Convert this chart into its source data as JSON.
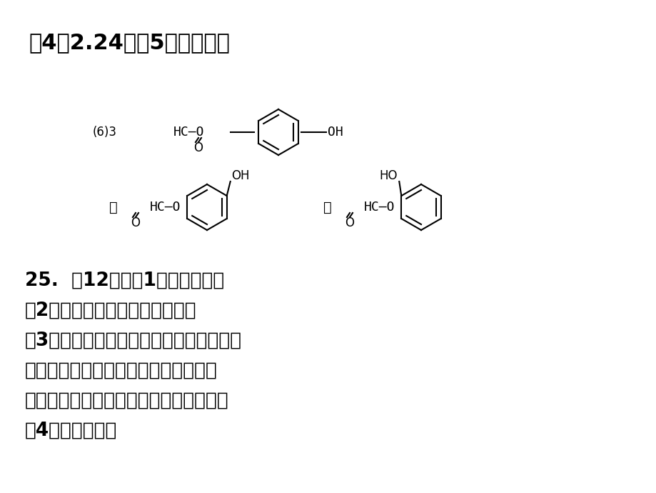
{
  "bg_color": "#ffffff",
  "title_line": "（4）2.24灌（5）消去反应",
  "text_lines": [
    "25.  （12分）（1）醛基、羟基",
    "（2）甲、乙、丙互为同分异构体",
    "（3）与三氯化铁溶液作用显紫色的是甲；",
    "与碳酸钠溶液作用有气泡生成的是乙；",
    "与银氨溶液水浴加热有银镜产生的是丙。",
    "（4）乙＞甲＞丙"
  ],
  "label_63": "(6)3",
  "figsize": [
    9.2,
    6.9
  ],
  "dpi": 100
}
